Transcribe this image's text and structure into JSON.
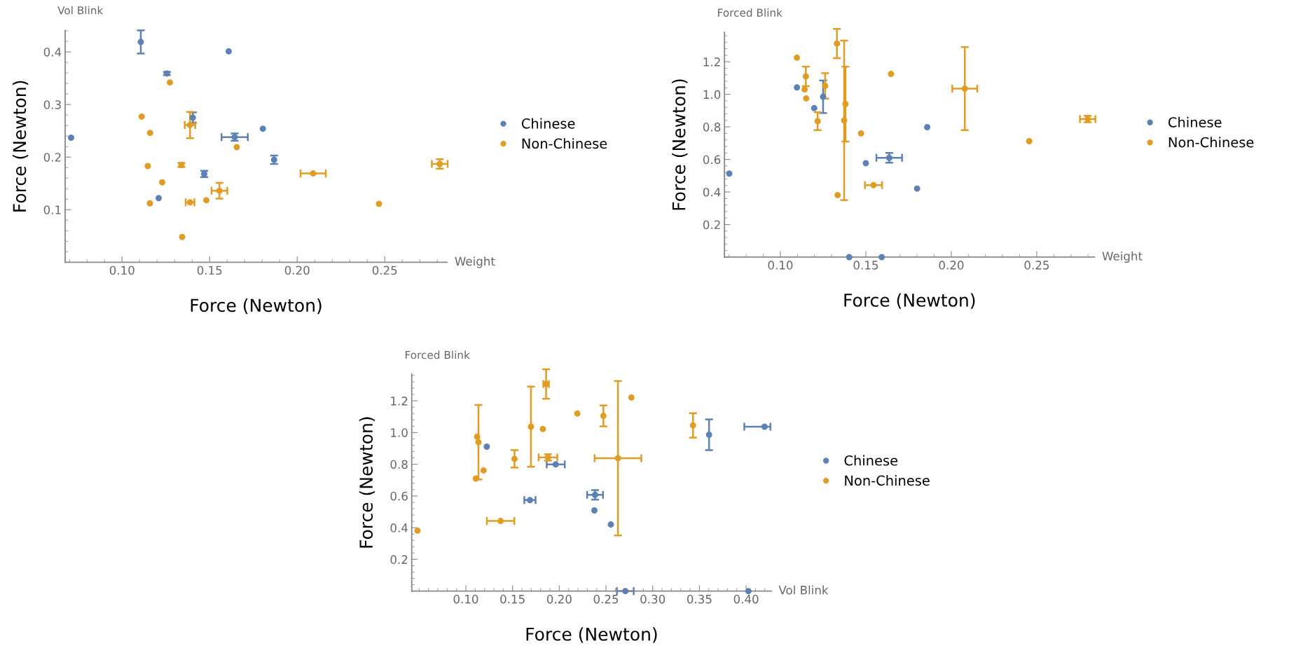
{
  "chart_data": [
    {
      "type": "scatter",
      "xlabel": "Force (Newton)",
      "ylabel": "Force (Newton)",
      "annotations": [
        "Vol Blink",
        "Weight"
      ],
      "legend": "right",
      "marker": "circle",
      "xlim": [
        0.0675,
        0.2855
      ],
      "ylim": [
        0,
        0.441
      ],
      "xticks": [
        {
          "value": 0.1,
          "label": "0.10"
        },
        {
          "value": 0.15,
          "label": "0.15"
        },
        {
          "value": 0.2,
          "label": "0.20"
        },
        {
          "value": 0.25,
          "label": "0.25"
        }
      ],
      "yticks": [
        0.1,
        0.2,
        0.3,
        0.4
      ],
      "series": [
        {
          "name": "Chinese",
          "color": "#5e81b5",
          "x": [
            0.1107,
            0.1256,
            0.1609,
            0.1404,
            0.0709,
            0.1643,
            0.1804,
            0.1868,
            0.1469,
            0.1209
          ],
          "values": [
            0.419,
            0.359,
            0.401,
            0.275,
            0.237,
            0.238,
            0.254,
            0.195,
            0.168,
            0.122
          ],
          "errors": [
            0.022,
            0.003,
            null,
            0.01,
            null,
            0.007,
            null,
            0.008,
            0.006,
            null
          ],
          "xerrors": [
            null,
            null,
            null,
            null,
            null,
            0.0075,
            null,
            null,
            null,
            null
          ]
        },
        {
          "name": "Non-Chinese",
          "color": "#e19c24",
          "x": [
            0.1273,
            0.1112,
            0.1388,
            0.116,
            0.1655,
            0.1339,
            0.1147,
            0.1229,
            0.1556,
            0.2091,
            0.2814,
            0.1159,
            0.1388,
            0.1481,
            0.2467,
            0.1343
          ],
          "values": [
            0.342,
            0.277,
            0.261,
            0.246,
            0.219,
            0.185,
            0.183,
            0.152,
            0.136,
            0.169,
            0.187,
            0.112,
            0.114,
            0.118,
            0.111,
            0.048
          ],
          "errors": [
            null,
            null,
            0.025,
            null,
            null,
            0.004,
            null,
            null,
            0.015,
            null,
            0.009,
            null,
            null,
            null,
            null,
            null
          ],
          "xerrors": [
            null,
            null,
            0.003,
            null,
            null,
            null,
            null,
            null,
            0.0045,
            0.0072,
            0.0045,
            null,
            0.0025,
            null,
            null,
            null
          ]
        }
      ]
    },
    {
      "type": "scatter",
      "xlabel": "Force (Newton)",
      "ylabel": "Force (Newton)",
      "annotations": [
        "Forced Blink",
        "Weight"
      ],
      "legend": "right",
      "marker": "circle",
      "xlim": [
        0.0673,
        0.2838
      ],
      "ylim": [
        0,
        1.381
      ],
      "xticks": [
        {
          "value": 0.1,
          "label": "0.10"
        },
        {
          "value": 0.15,
          "label": "0.15"
        },
        {
          "value": 0.2,
          "label": "0.20"
        },
        {
          "value": 0.25,
          "label": "0.25"
        }
      ],
      "yticks": [
        0.2,
        0.4,
        0.6,
        0.8,
        {
          "value": 1.0,
          "label": "1.0"
        },
        1.2
      ],
      "series": [
        {
          "name": "Chinese",
          "color": "#5e81b5",
          "x": [
            0.1097,
            0.1198,
            0.125,
            0.0701,
            0.15,
            0.1637,
            0.1859,
            0.18,
            0.1403,
            0.1593
          ],
          "values": [
            1.042,
            0.915,
            0.985,
            0.513,
            0.577,
            0.61,
            0.798,
            0.421,
            0,
            0
          ],
          "errors": [
            null,
            null,
            0.1,
            null,
            null,
            0.03,
            null,
            null,
            null,
            null
          ],
          "xerrors": [
            null,
            null,
            null,
            null,
            null,
            0.0075,
            null,
            null,
            null,
            null
          ]
        },
        {
          "name": "Non-Chinese",
          "color": "#e19c24",
          "x": [
            0.1097,
            0.1149,
            0.1142,
            0.1151,
            0.1262,
            0.1218,
            0.1331,
            0.1373,
            0.1381,
            0.1335,
            0.1472,
            0.1545,
            0.1647,
            0.2079,
            0.2456,
            0.2798
          ],
          "values": [
            1.225,
            1.11,
            1.03,
            0.975,
            1.052,
            0.835,
            1.312,
            0.84,
            0.94,
            0.381,
            0.76,
            0.442,
            1.125,
            1.035,
            0.712,
            0.848
          ],
          "errors": [
            null,
            0.06,
            null,
            null,
            0.078,
            0.055,
            0.09,
            0.49,
            0.23,
            null,
            null,
            null,
            null,
            0.255,
            null,
            0.02
          ],
          "xerrors": [
            null,
            null,
            null,
            null,
            null,
            null,
            null,
            null,
            null,
            null,
            null,
            0.005,
            null,
            0.0073,
            null,
            0.0045
          ]
        }
      ]
    },
    {
      "type": "scatter",
      "xlabel": "Force (Newton)",
      "ylabel": "Force (Newton)",
      "annotations": [
        "Forced Blink",
        "Vol Blink"
      ],
      "legend": "right",
      "marker": "circle",
      "xlim": [
        0.0421,
        0.427
      ],
      "ylim": [
        0,
        1.369
      ],
      "xticks": [
        {
          "value": 0.1,
          "label": "0.10"
        },
        {
          "value": 0.15,
          "label": "0.15"
        },
        {
          "value": 0.2,
          "label": "0.20"
        },
        {
          "value": 0.25,
          "label": "0.25"
        },
        {
          "value": 0.3,
          "label": "0.30"
        },
        {
          "value": 0.35,
          "label": "0.35"
        },
        {
          "value": 0.4,
          "label": "0.40"
        }
      ],
      "yticks": [
        0.2,
        0.4,
        0.6,
        0.8,
        {
          "value": 1.0,
          "label": "1.0"
        },
        1.2
      ],
      "series": [
        {
          "name": "Chinese",
          "color": "#5e81b5",
          "x": [
            0.1224,
            0.1962,
            0.1686,
            0.2383,
            0.2376,
            0.2552,
            0.3603,
            0.4197,
            0.2707,
            0.4024
          ],
          "values": [
            0.911,
            0.799,
            0.574,
            0.607,
            0.509,
            0.42,
            0.986,
            1.037,
            0,
            0
          ],
          "errors": [
            null,
            null,
            null,
            0.03,
            null,
            null,
            0.097,
            null,
            null,
            null
          ],
          "xerrors": [
            null,
            0.0097,
            0.006,
            0.0085,
            null,
            null,
            null,
            [
              0.398,
              0.426
            ],
            0.009,
            null
          ]
        },
        {
          "name": "Non-Chinese",
          "color": "#e19c24",
          "x": [
            0.1121,
            0.1135,
            0.1107,
            0.119,
            0.1521,
            0.1372,
            0.1697,
            0.1824,
            0.1859,
            0.1879,
            0.2193,
            0.2472,
            0.2772,
            0.2628,
            0.3431,
            0.0483
          ],
          "values": [
            0.974,
            0.939,
            0.71,
            0.761,
            0.834,
            0.442,
            1.037,
            1.022,
            1.306,
            0.843,
            1.12,
            1.105,
            1.221,
            0.838,
            1.045,
            0.381
          ],
          "errors": [
            null,
            0.235,
            null,
            null,
            0.055,
            null,
            0.253,
            null,
            0.093,
            0.02,
            null,
            0.066,
            null,
            0.487,
            0.077,
            null
          ],
          "xerrors": [
            null,
            null,
            null,
            null,
            null,
            0.0147,
            null,
            null,
            0.003,
            0.01,
            null,
            null,
            null,
            0.025,
            null,
            null
          ]
        }
      ]
    }
  ]
}
